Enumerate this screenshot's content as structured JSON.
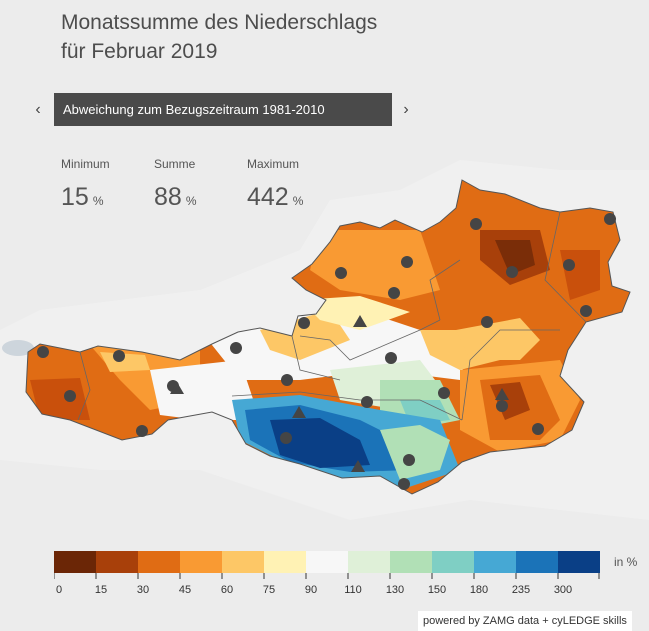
{
  "header": {
    "title_line1": "Monatssumme des Niederschlags",
    "title_line2": "für Februar 2019"
  },
  "selector": {
    "label": "Abweichung zum Bezugszeitraum 1981-2010",
    "prev": "‹",
    "next": "›"
  },
  "stats": [
    {
      "label": "Minimum",
      "value": "15",
      "unit": "%"
    },
    {
      "label": "Summe",
      "value": "88",
      "unit": "%"
    },
    {
      "label": "Maximum",
      "value": "442",
      "unit": "%"
    }
  ],
  "legend": {
    "unit": "in %",
    "labels": [
      "0",
      "15",
      "30",
      "45",
      "60",
      "75",
      "90",
      "110",
      "130",
      "150",
      "180",
      "235",
      "300"
    ],
    "colors": [
      "#6b2606",
      "#a8400a",
      "#e06c14",
      "#f99a33",
      "#fdc766",
      "#fff2b4",
      "#f7f7f7",
      "#dff0d8",
      "#b1e0b6",
      "#7fcfc4",
      "#46a8d4",
      "#1b73b8",
      "#0a3f86"
    ]
  },
  "credit": "powered by ZAMG data + cyLEDGE skills"
}
